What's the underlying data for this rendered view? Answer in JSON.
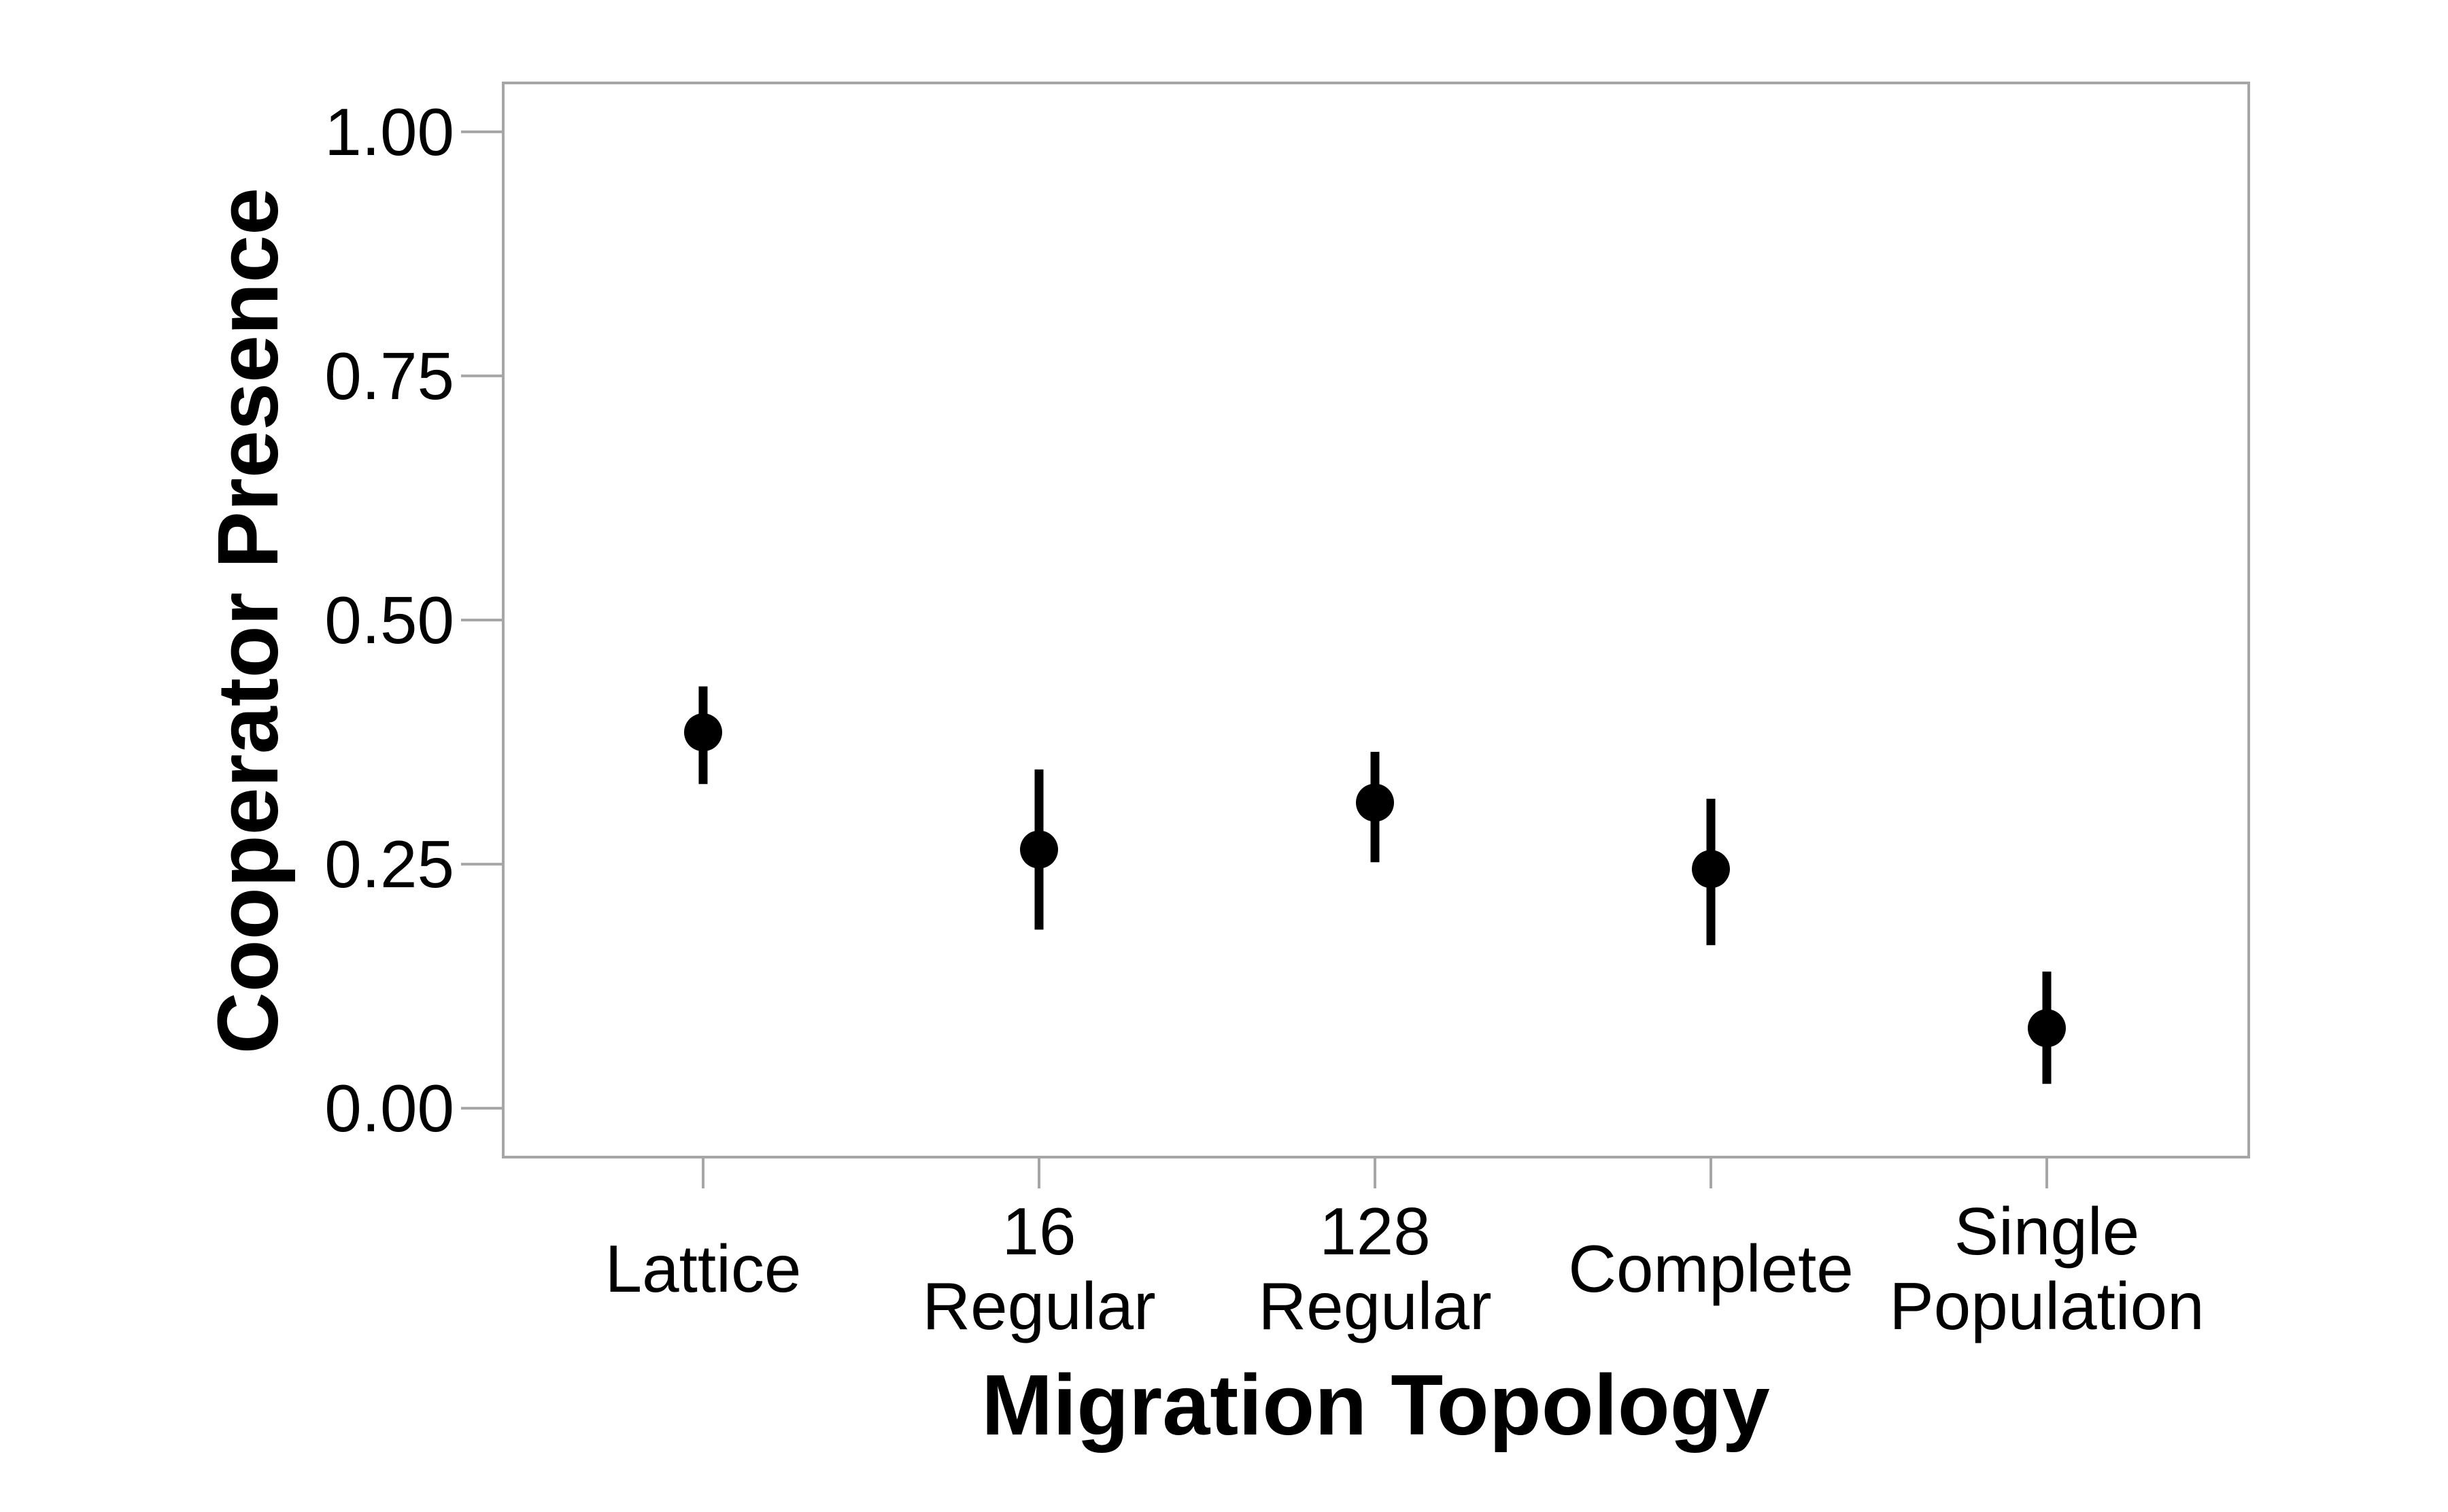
{
  "chart_data": {
    "type": "scatter",
    "title": "",
    "xlabel": "Migration Topology",
    "ylabel": "Cooperator Presence",
    "categories": [
      [
        "Lattice"
      ],
      [
        "16",
        "Regular"
      ],
      [
        "128",
        "Regular"
      ],
      [
        "Complete"
      ],
      [
        "Single",
        "Population"
      ]
    ],
    "y_ticks": [
      "0.00",
      "0.25",
      "0.50",
      "0.75",
      "1.00"
    ],
    "y_tick_values": [
      0,
      0.25,
      0.5,
      0.75,
      1.0
    ],
    "ylim": [
      -0.05,
      1.05
    ],
    "grid": false,
    "series": [
      {
        "values": [
          0.385,
          0.265,
          0.313,
          0.245,
          0.082
        ],
        "lower": [
          0.332,
          0.183,
          0.252,
          0.167,
          0.025
        ],
        "upper": [
          0.432,
          0.347,
          0.365,
          0.317,
          0.14
        ]
      }
    ],
    "colors": {
      "points": "#000000",
      "frame": "#a6a6a6",
      "text": "#000000"
    }
  }
}
